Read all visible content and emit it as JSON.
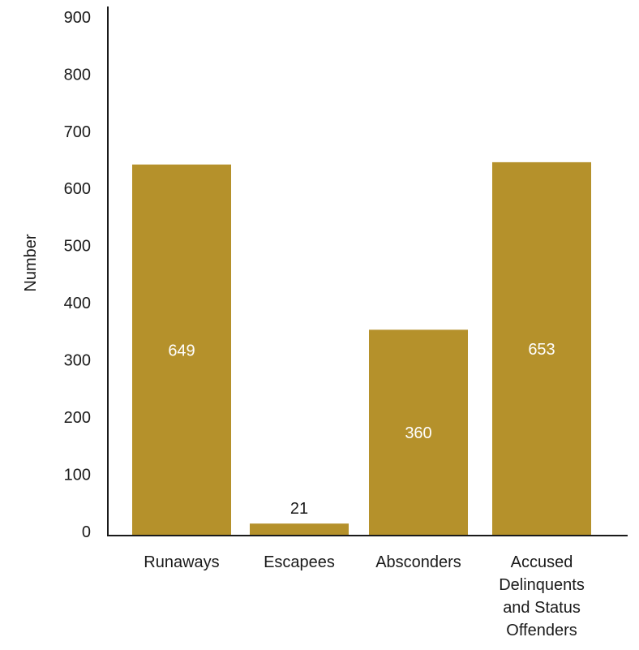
{
  "chart_data": {
    "type": "bar",
    "title": "",
    "xlabel": "",
    "ylabel": "Number",
    "ylim": [
      0,
      900
    ],
    "yticks": [
      0,
      100,
      200,
      300,
      400,
      500,
      600,
      700,
      800,
      900
    ],
    "grid": false,
    "categories": [
      "Runaways",
      "Escapees",
      "Absconders",
      "Accused Delinquents and Status Offenders"
    ],
    "category_lines": [
      [
        "Runaways"
      ],
      [
        "Escapees"
      ],
      [
        "Absconders"
      ],
      [
        "Accused",
        "Delinquents",
        "and Status",
        "Offenders"
      ]
    ],
    "values": [
      649,
      21,
      360,
      653
    ],
    "data_labels": [
      "649",
      "21",
      "360",
      "653"
    ],
    "colors": {
      "bar": "#B5912B",
      "axis": "#1a1a1a",
      "text": "#1a1a1a",
      "inside_label": "#ffffff"
    }
  }
}
